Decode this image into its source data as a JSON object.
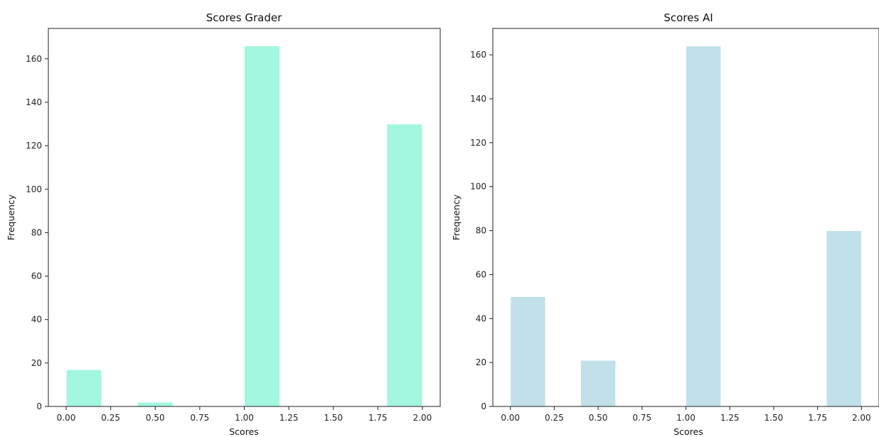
{
  "chart_data": [
    {
      "type": "bar",
      "title": "Scores Grader",
      "xlabel": "Scores",
      "ylabel": "Frequency",
      "color": "#a3f7de",
      "xlim": [
        -0.1,
        2.1
      ],
      "ylim": [
        0,
        174
      ],
      "xticks": [
        "0.00",
        "0.25",
        "0.50",
        "0.75",
        "1.00",
        "1.25",
        "1.50",
        "1.75",
        "2.00"
      ],
      "yticks": [
        "0",
        "20",
        "40",
        "60",
        "80",
        "100",
        "120",
        "140",
        "160"
      ],
      "bins": [
        {
          "x0": 0.0,
          "x1": 0.2,
          "value": 17
        },
        {
          "x0": 0.4,
          "x1": 0.6,
          "value": 2
        },
        {
          "x0": 1.0,
          "x1": 1.2,
          "value": 166
        },
        {
          "x0": 1.8,
          "x1": 2.0,
          "value": 130
        }
      ],
      "grid": false
    },
    {
      "type": "bar",
      "title": "Scores AI",
      "xlabel": "Scores",
      "ylabel": "Frequency",
      "color": "#c1e0e9",
      "xlim": [
        -0.1,
        2.1
      ],
      "ylim": [
        0,
        172
      ],
      "xticks": [
        "0.00",
        "0.25",
        "0.50",
        "0.75",
        "1.00",
        "1.25",
        "1.50",
        "1.75",
        "2.00"
      ],
      "yticks": [
        "0",
        "20",
        "40",
        "60",
        "80",
        "100",
        "120",
        "140",
        "160"
      ],
      "bins": [
        {
          "x0": 0.0,
          "x1": 0.2,
          "value": 50
        },
        {
          "x0": 0.4,
          "x1": 0.6,
          "value": 21
        },
        {
          "x0": 1.0,
          "x1": 1.2,
          "value": 164
        },
        {
          "x0": 1.8,
          "x1": 2.0,
          "value": 80
        }
      ],
      "grid": false
    }
  ]
}
